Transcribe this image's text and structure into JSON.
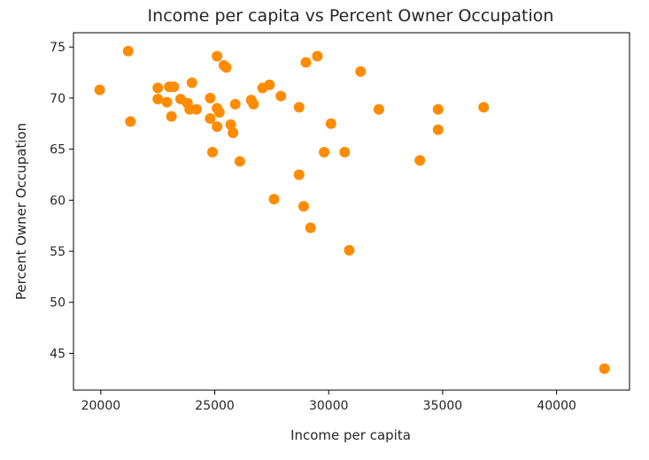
{
  "chart_data": {
    "type": "scatter",
    "title": "Income per capita vs Percent Owner Occupation",
    "xlabel": "Income per capita",
    "ylabel": "Percent Owner Occupation",
    "xlim": [
      18800,
      43200
    ],
    "ylim": [
      41.4,
      76.4
    ],
    "xticks": [
      20000,
      25000,
      30000,
      35000,
      40000
    ],
    "yticks": [
      45,
      50,
      55,
      60,
      65,
      70,
      75
    ],
    "grid": false,
    "color": "#ff8c00",
    "points": [
      [
        19950,
        70.8
      ],
      [
        21200,
        74.6
      ],
      [
        21300,
        67.7
      ],
      [
        22500,
        71.0
      ],
      [
        22500,
        69.9
      ],
      [
        23000,
        71.1
      ],
      [
        22900,
        69.6
      ],
      [
        23200,
        71.1
      ],
      [
        23100,
        68.2
      ],
      [
        23500,
        69.9
      ],
      [
        23800,
        69.5
      ],
      [
        23900,
        68.9
      ],
      [
        24000,
        71.5
      ],
      [
        24200,
        68.9
      ],
      [
        24800,
        70.0
      ],
      [
        24800,
        68.0
      ],
      [
        24900,
        64.7
      ],
      [
        25100,
        74.1
      ],
      [
        25100,
        69.0
      ],
      [
        25200,
        68.6
      ],
      [
        25100,
        67.2
      ],
      [
        25400,
        73.2
      ],
      [
        25500,
        73.0
      ],
      [
        25700,
        67.4
      ],
      [
        25800,
        66.6
      ],
      [
        25900,
        69.4
      ],
      [
        26100,
        63.8
      ],
      [
        26600,
        69.8
      ],
      [
        26700,
        69.4
      ],
      [
        27100,
        71.0
      ],
      [
        27400,
        71.3
      ],
      [
        27600,
        60.1
      ],
      [
        27900,
        70.2
      ],
      [
        28700,
        69.1
      ],
      [
        28700,
        62.5
      ],
      [
        28900,
        59.4
      ],
      [
        29000,
        73.5
      ],
      [
        29200,
        57.3
      ],
      [
        29500,
        74.1
      ],
      [
        29800,
        64.7
      ],
      [
        30100,
        67.5
      ],
      [
        30700,
        64.7
      ],
      [
        30900,
        55.1
      ],
      [
        31400,
        72.6
      ],
      [
        32200,
        68.9
      ],
      [
        34000,
        63.9
      ],
      [
        34800,
        68.9
      ],
      [
        34800,
        66.9
      ],
      [
        36800,
        69.1
      ],
      [
        42100,
        43.5
      ]
    ]
  }
}
